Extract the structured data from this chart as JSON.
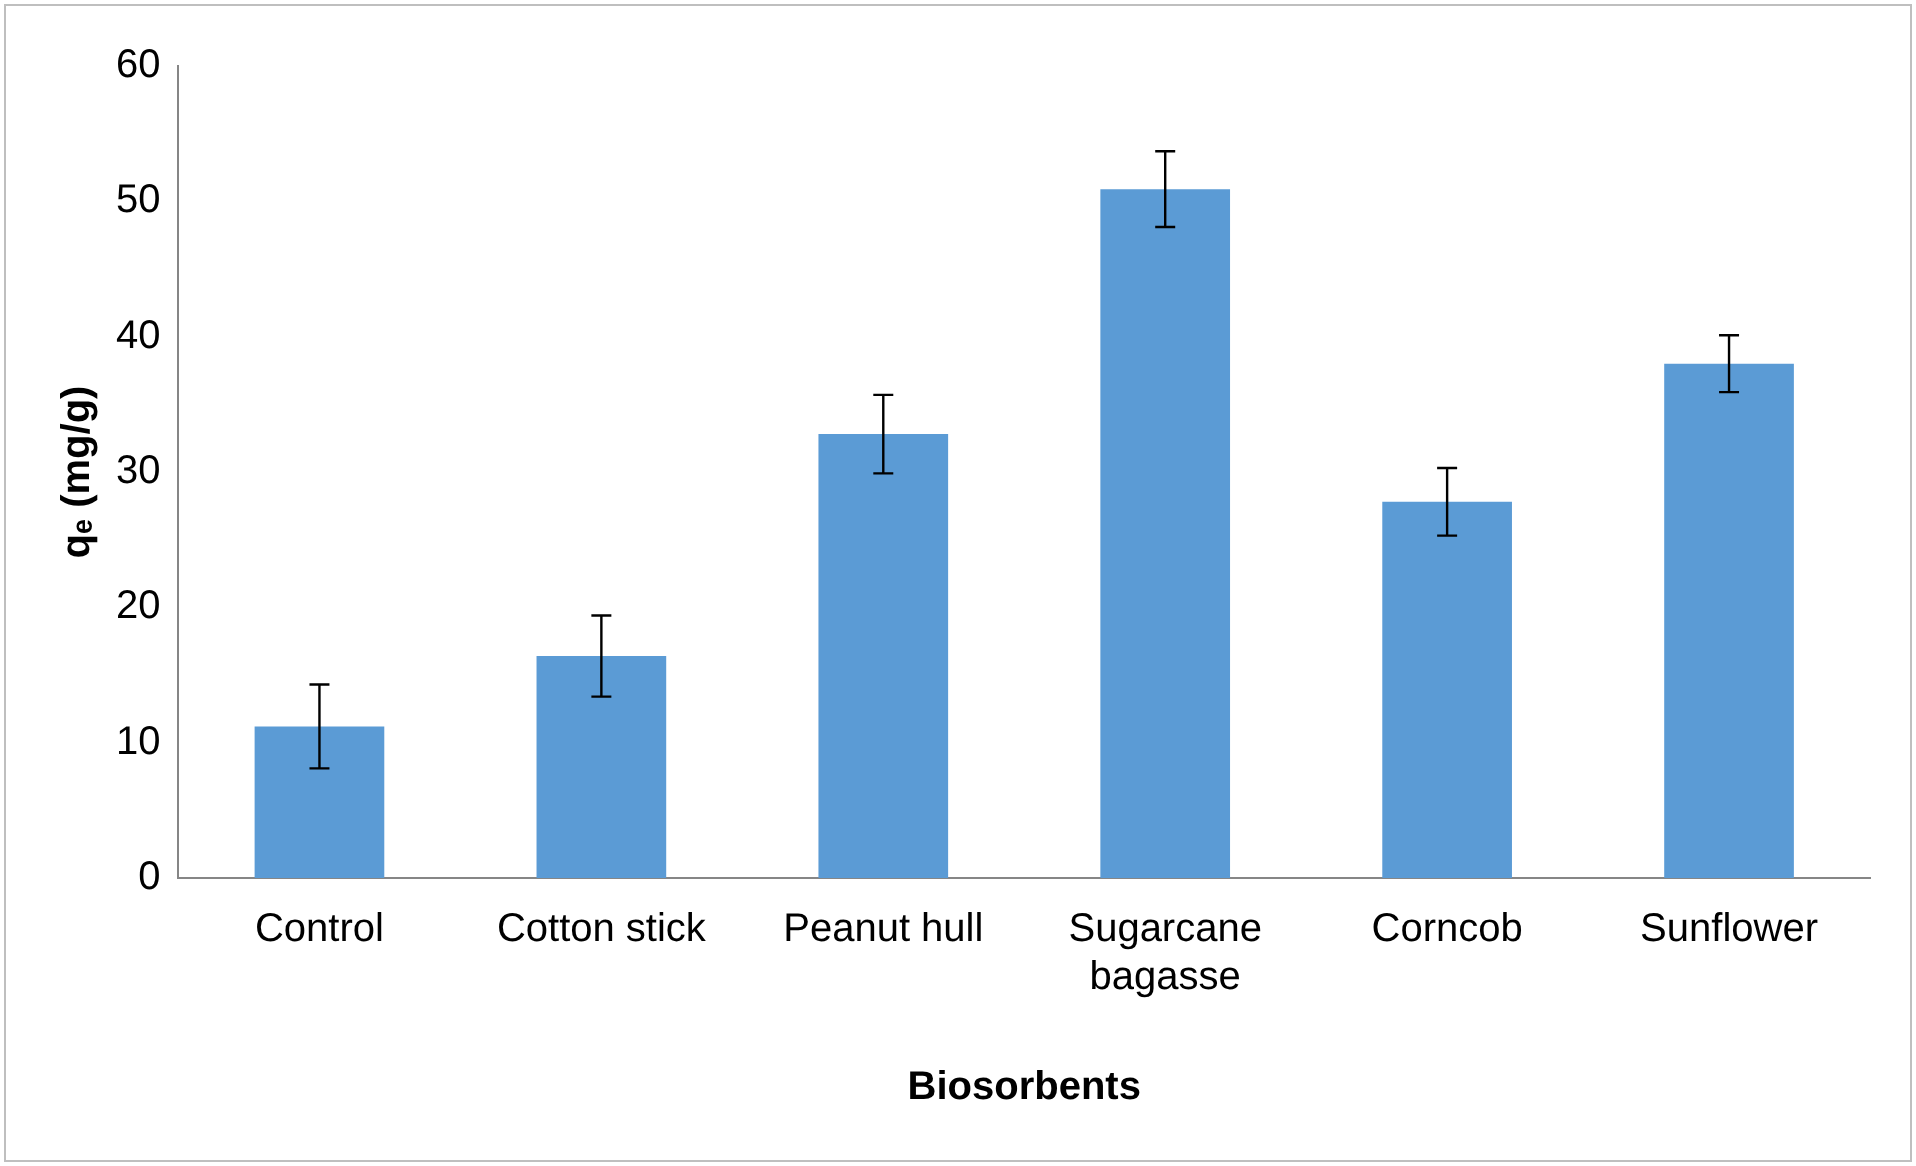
{
  "chart_data": {
    "type": "bar",
    "xlabel": "Biosorbents",
    "ylabel": "qₑ (mg/g)",
    "categories": [
      "Control",
      "Cotton stick",
      "Peanut hull",
      "Sugarcane bagasse",
      "Corncob",
      "Sunflower"
    ],
    "values": [
      11.2,
      16.4,
      32.8,
      50.9,
      27.8,
      38.0
    ],
    "errors": [
      3.1,
      3.0,
      2.9,
      2.8,
      2.5,
      2.1
    ],
    "color": "#5b9bd5",
    "ylim": [
      0,
      60
    ],
    "yticks": [
      0,
      10,
      20,
      30,
      40,
      50,
      60
    ],
    "grid": false,
    "legend": false
  }
}
